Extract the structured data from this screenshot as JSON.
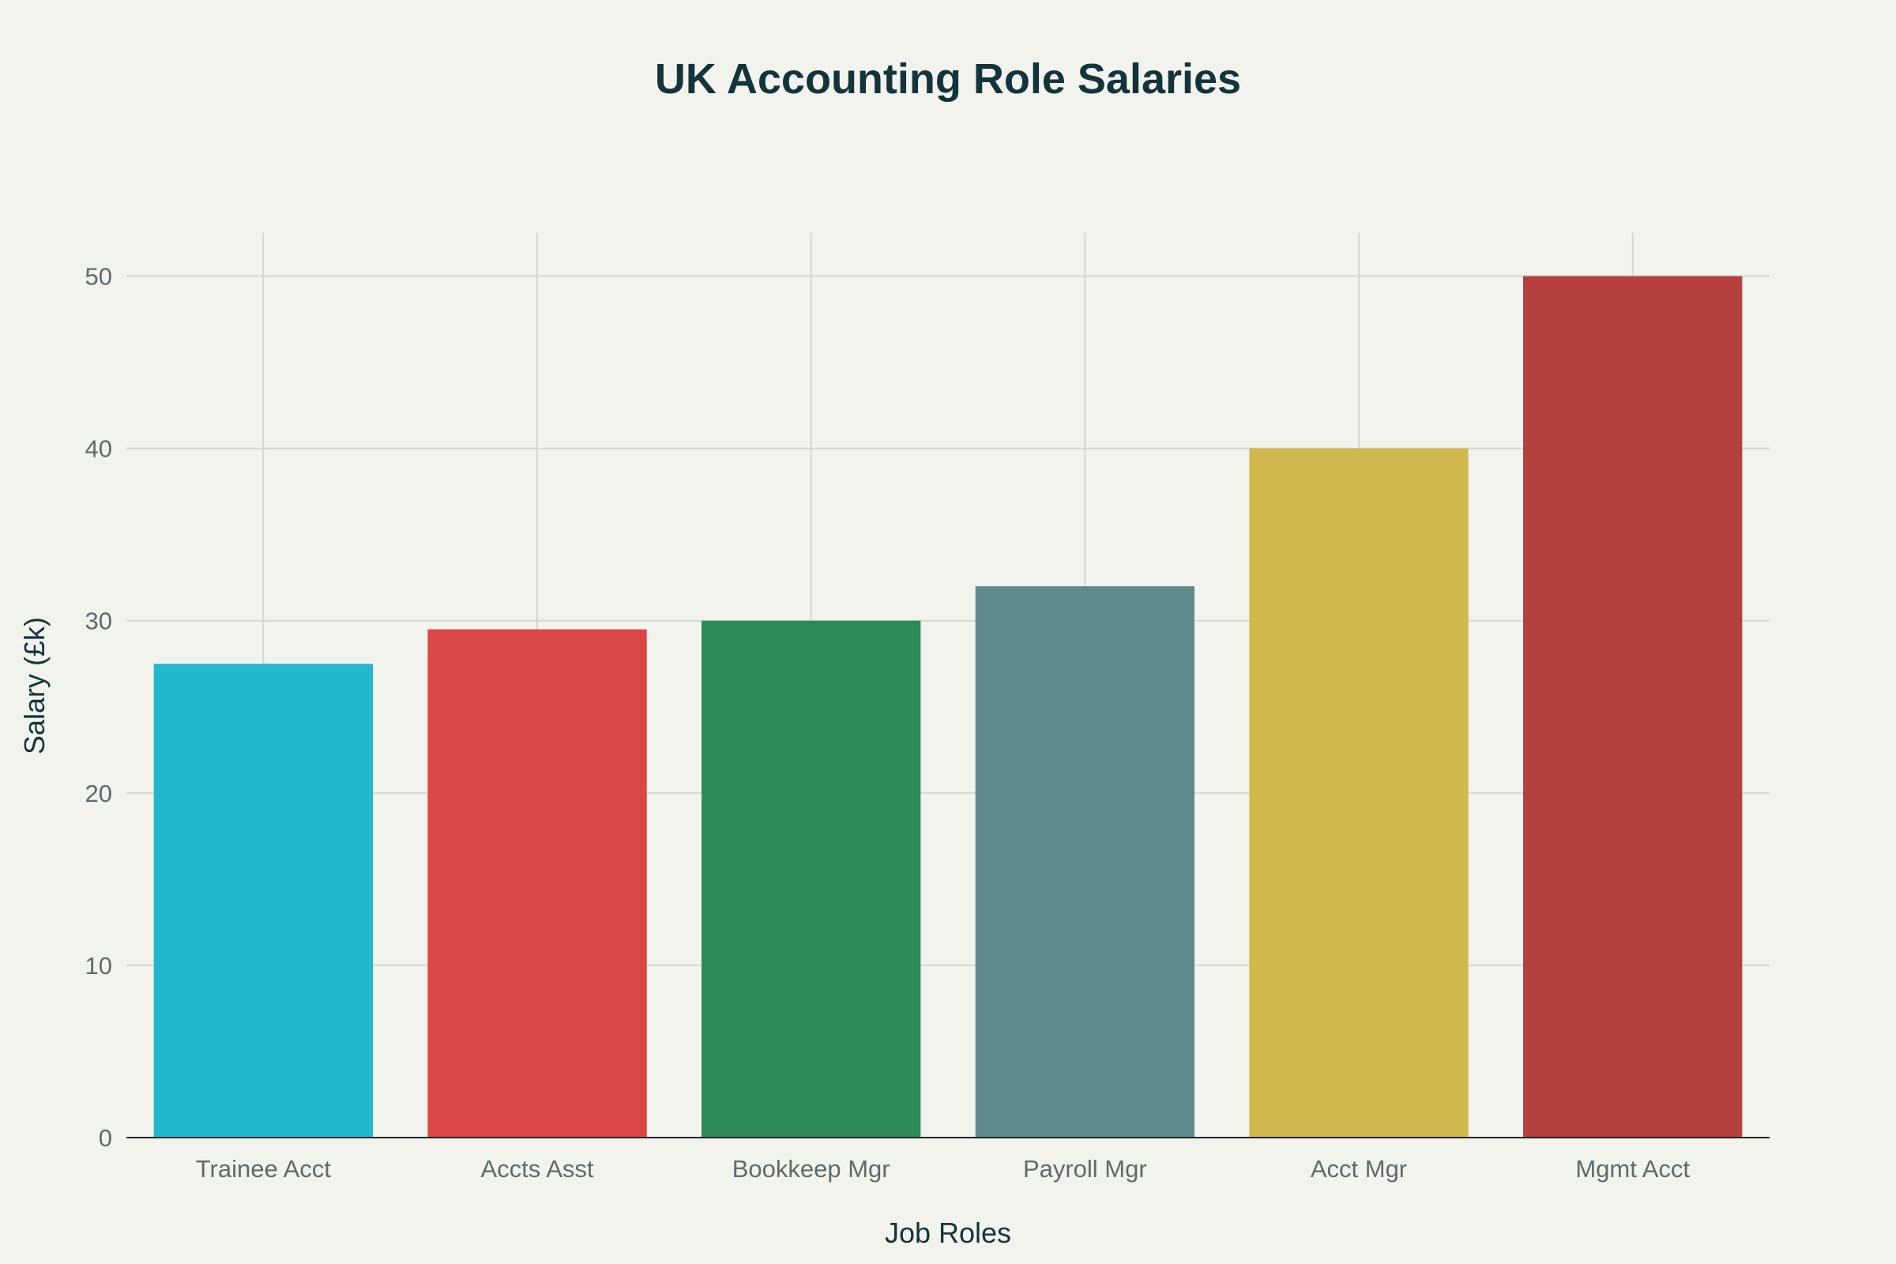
{
  "chart_data": {
    "type": "bar",
    "title": "UK Accounting Role Salaries",
    "xlabel": "Job Roles",
    "ylabel": "Salary (£k)",
    "categories": [
      "Trainee Acct",
      "Accts Asst",
      "Bookkeep Mgr",
      "Payroll Mgr",
      "Acct Mgr",
      "Mgmt Acct"
    ],
    "values": [
      27.5,
      29.5,
      30,
      32,
      40,
      50
    ],
    "colors": [
      "#21b8cd",
      "#db4647",
      "#2f8a5a",
      "#5e8a8f",
      "#d2b94e",
      "#b6403d"
    ],
    "ylim": [
      0,
      52.5
    ],
    "yticks": [
      0,
      10,
      20,
      30,
      40,
      50
    ],
    "grid": true,
    "legend": "none"
  }
}
